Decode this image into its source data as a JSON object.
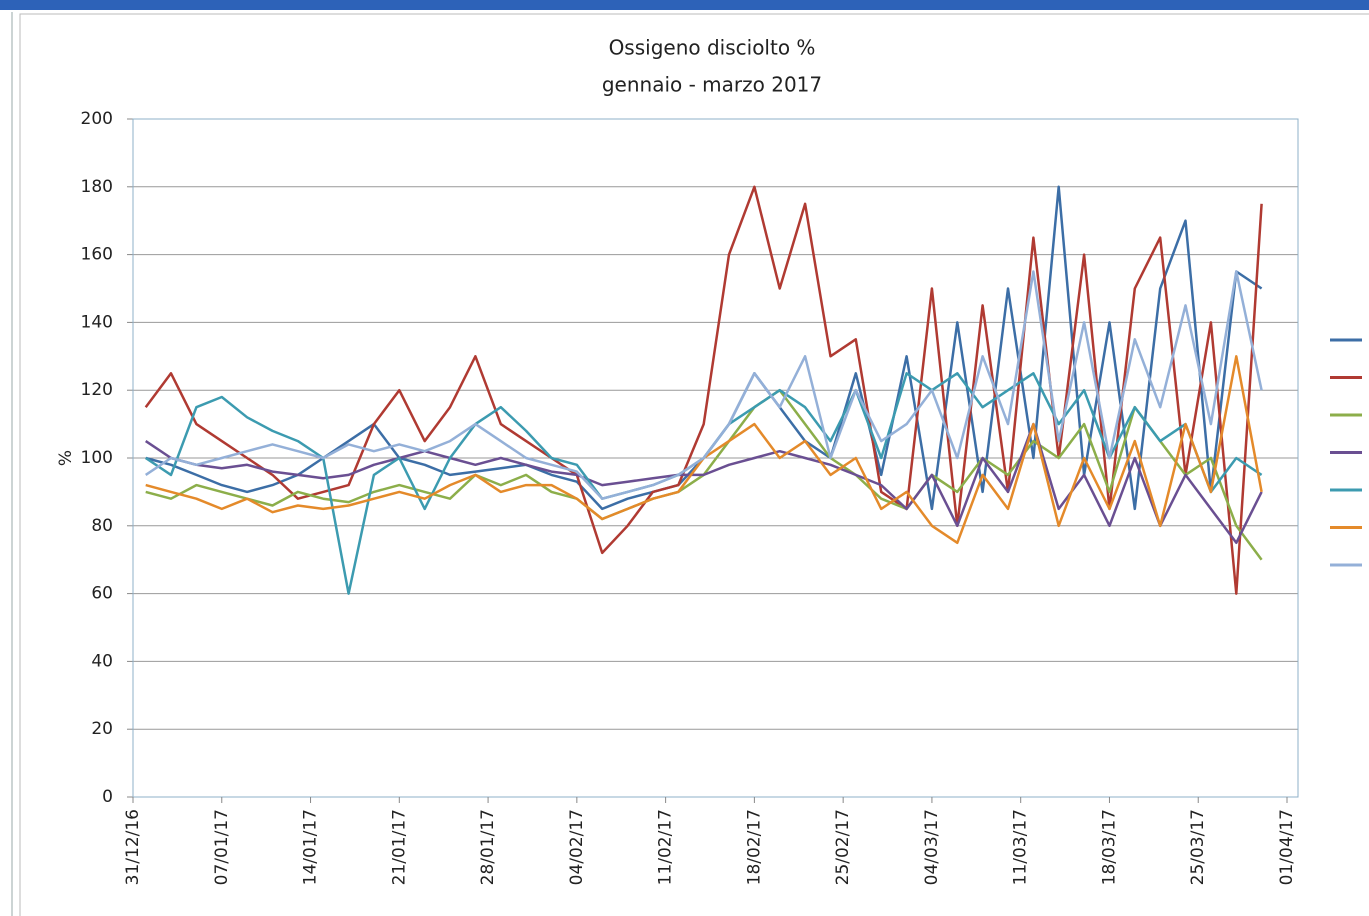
{
  "chart_data": {
    "type": "line",
    "title": "Ossigeno disciolto %",
    "subtitle": "gennaio - marzo 2017",
    "y_label": "%",
    "x": [
      "01/01/17",
      "03/01/17",
      "05/01/17",
      "07/01/17",
      "09/01/17",
      "11/01/17",
      "13/01/17",
      "15/01/17",
      "17/01/17",
      "19/01/17",
      "21/01/17",
      "23/01/17",
      "25/01/17",
      "27/01/17",
      "29/01/17",
      "31/01/17",
      "02/02/17",
      "04/02/17",
      "06/02/17",
      "08/02/17",
      "10/02/17",
      "12/02/17",
      "14/02/17",
      "16/02/17",
      "18/02/17",
      "20/02/17",
      "22/02/17",
      "24/02/17",
      "26/02/17",
      "28/02/17",
      "02/03/17",
      "04/03/17",
      "06/03/17",
      "08/03/17",
      "10/03/17",
      "12/03/17",
      "14/03/17",
      "16/03/17",
      "18/03/17",
      "20/03/17",
      "22/03/17",
      "24/03/17",
      "26/03/17",
      "28/03/17",
      "30/03/17"
    ],
    "series": [
      {
        "color": "#3c6ea6",
        "values": [
          100,
          98,
          95,
          92,
          90,
          92,
          95,
          100,
          105,
          110,
          100,
          98,
          95,
          96,
          97,
          98,
          95,
          93,
          85,
          88,
          90,
          92,
          100,
          110,
          125,
          115,
          105,
          100,
          125,
          95,
          130,
          85,
          140,
          90,
          150,
          100,
          180,
          95,
          140,
          85,
          150,
          170,
          90,
          155,
          150
        ]
      },
      {
        "color": "#b03a32",
        "values": [
          115,
          125,
          110,
          105,
          100,
          95,
          88,
          90,
          92,
          110,
          120,
          105,
          115,
          130,
          110,
          105,
          100,
          95,
          72,
          80,
          90,
          92,
          110,
          160,
          180,
          150,
          175,
          130,
          135,
          90,
          85,
          150,
          80,
          145,
          90,
          165,
          100,
          160,
          85,
          150,
          165,
          95,
          140,
          60,
          175
        ]
      },
      {
        "color": "#8cae4a",
        "values": [
          90,
          88,
          92,
          90,
          88,
          86,
          90,
          88,
          87,
          90,
          92,
          90,
          88,
          95,
          92,
          95,
          90,
          88,
          82,
          85,
          88,
          90,
          95,
          105,
          115,
          120,
          110,
          100,
          95,
          88,
          85,
          95,
          90,
          100,
          95,
          105,
          100,
          110,
          90,
          115,
          105,
          95,
          100,
          80,
          70
        ]
      },
      {
        "color": "#6a4f92",
        "values": [
          105,
          100,
          98,
          97,
          98,
          96,
          95,
          94,
          95,
          98,
          100,
          102,
          100,
          98,
          100,
          98,
          96,
          95,
          92,
          93,
          94,
          95,
          95,
          98,
          100,
          102,
          100,
          98,
          95,
          92,
          85,
          95,
          80,
          100,
          90,
          110,
          85,
          95,
          80,
          100,
          80,
          95,
          85,
          75,
          90
        ]
      },
      {
        "color": "#3c9bb0",
        "values": [
          100,
          95,
          115,
          118,
          112,
          108,
          105,
          100,
          60,
          95,
          100,
          85,
          100,
          110,
          115,
          108,
          100,
          98,
          88,
          90,
          92,
          95,
          100,
          110,
          115,
          120,
          115,
          105,
          120,
          100,
          125,
          120,
          125,
          115,
          120,
          125,
          110,
          120,
          100,
          115,
          105,
          110,
          90,
          100,
          95
        ]
      },
      {
        "color": "#e48a2a",
        "values": [
          92,
          90,
          88,
          85,
          88,
          84,
          86,
          85,
          86,
          88,
          90,
          88,
          92,
          95,
          90,
          92,
          92,
          88,
          82,
          85,
          88,
          90,
          100,
          105,
          110,
          100,
          105,
          95,
          100,
          85,
          90,
          80,
          75,
          95,
          85,
          110,
          80,
          100,
          85,
          105,
          80,
          110,
          90,
          130,
          90
        ]
      },
      {
        "color": "#94b0d8",
        "values": [
          95,
          100,
          98,
          100,
          102,
          104,
          102,
          100,
          104,
          102,
          104,
          102,
          105,
          110,
          105,
          100,
          98,
          96,
          88,
          90,
          92,
          95,
          100,
          110,
          125,
          115,
          130,
          100,
          120,
          105,
          110,
          120,
          100,
          130,
          110,
          155,
          105,
          140,
          100,
          135,
          115,
          145,
          110,
          155,
          120
        ]
      }
    ],
    "xlim": [
      "31/12/16",
      "01/04/17"
    ],
    "xticks": [
      "31/12/16",
      "07/01/17",
      "14/01/17",
      "21/01/17",
      "28/01/17",
      "04/02/17",
      "11/02/17",
      "18/02/17",
      "25/02/17",
      "04/03/17",
      "11/03/17",
      "18/03/17",
      "25/03/17",
      "01/04/17"
    ],
    "ylim": [
      0,
      200
    ],
    "yticks": [
      0,
      20,
      40,
      60,
      80,
      100,
      120,
      140,
      160,
      180,
      200
    ],
    "grid": true,
    "legend": "right"
  }
}
